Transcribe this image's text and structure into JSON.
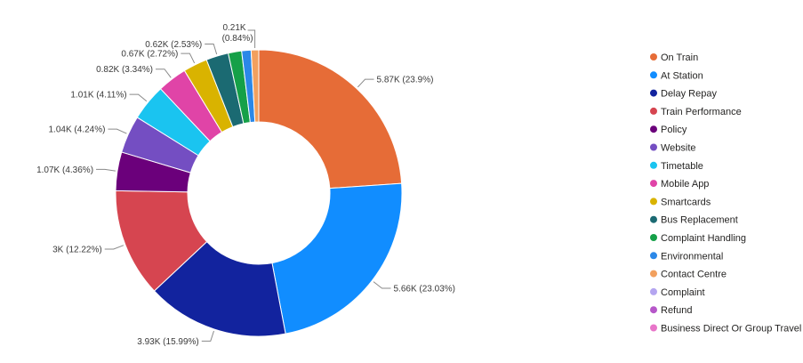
{
  "chart_data": {
    "type": "pie",
    "donut": true,
    "title": "",
    "legend_position": "right",
    "slices": [
      {
        "name": "On Train",
        "value": 5.87,
        "label": "5.87K (23.9%)",
        "color": "#E66C37"
      },
      {
        "name": "At Station",
        "value": 5.66,
        "label": "5.66K (23.03%)",
        "color": "#118DFF"
      },
      {
        "name": "Delay Repay",
        "value": 3.93,
        "label": "3.93K (15.99%)",
        "color": "#12239E"
      },
      {
        "name": "Train Performance",
        "value": 3.0,
        "label": "3K (12.22%)",
        "color": "#D64550"
      },
      {
        "name": "Policy",
        "value": 1.07,
        "label": "1.07K (4.36%)",
        "color": "#6B007B"
      },
      {
        "name": "Website",
        "value": 1.04,
        "label": "1.04K (4.24%)",
        "color": "#744EC2"
      },
      {
        "name": "Timetable",
        "value": 1.01,
        "label": "1.01K (4.11%)",
        "color": "#1AC4F0"
      },
      {
        "name": "Mobile App",
        "value": 0.82,
        "label": "0.82K (3.34%)",
        "color": "#E044A7"
      },
      {
        "name": "Smartcards",
        "value": 0.67,
        "label": "0.67K (2.72%)",
        "color": "#D9B300"
      },
      {
        "name": "Bus Replacement",
        "value": 0.62,
        "label": "0.62K (2.53%)",
        "color": "#1B6A72"
      },
      {
        "name": "Complaint Handling",
        "value": 0.37,
        "label": "",
        "color": "#15A048"
      },
      {
        "name": "Environmental",
        "value": 0.26,
        "label": "",
        "color": "#2B88E8"
      },
      {
        "name": "Contact Centre",
        "value": 0.21,
        "label": "0.21K (0.84%)",
        "color": "#F2A05E"
      },
      {
        "name": "Complaint",
        "value": 0.0,
        "label": "",
        "color": "#B4A5F0"
      },
      {
        "name": "Refund",
        "value": 0.0,
        "label": "",
        "color": "#B657C9"
      },
      {
        "name": "Business Direct Or Group Travel",
        "value": 0.0,
        "label": "",
        "color": "#E875C9"
      }
    ]
  }
}
